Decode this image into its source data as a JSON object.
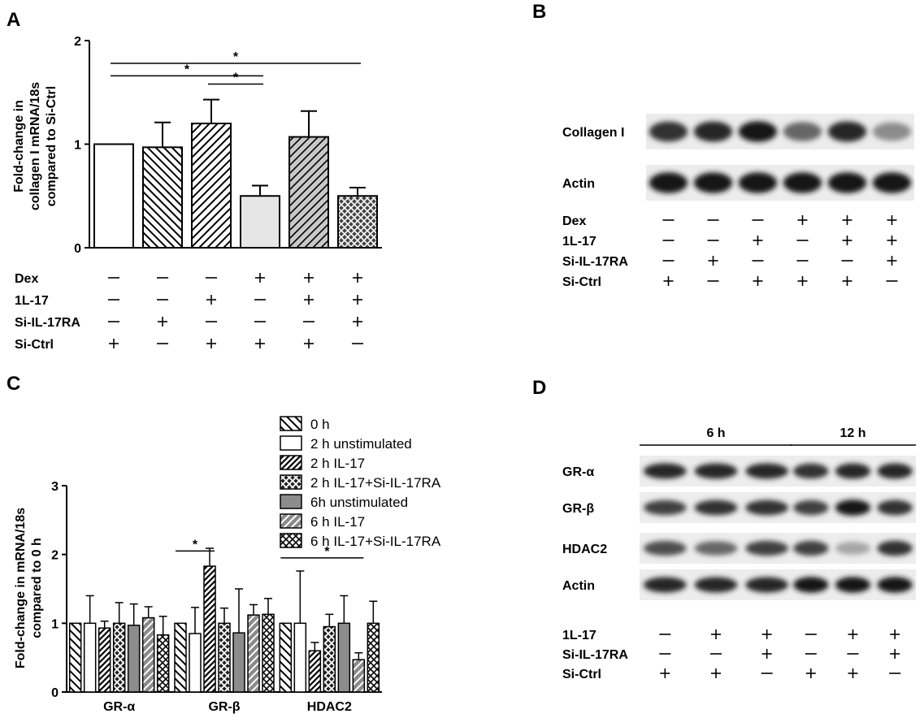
{
  "panels": {
    "A": {
      "letter": "A",
      "chart_data": {
        "type": "bar",
        "ylabel": "Fold-change in\ncollagen I mRNA/18s\ncompared to Si-Ctrl",
        "ylim": [
          0,
          2
        ],
        "yticks": [
          "0",
          "1",
          "2"
        ],
        "groups": 6,
        "values": [
          1.0,
          0.97,
          1.2,
          0.5,
          1.07,
          0.5
        ],
        "errors": [
          0,
          0.24,
          0.23,
          0.1,
          0.25,
          0.08
        ],
        "fills": [
          "white",
          "hatch-backslash",
          "hatch-slash",
          "light-gray",
          "gray-hatch-slash",
          "crosshatch-dark"
        ],
        "significance": [
          {
            "from": 0,
            "to": 5,
            "y": 1.78,
            "label": "*"
          },
          {
            "from": 0,
            "to": 3,
            "y": 1.66,
            "label": "*"
          },
          {
            "from": 2,
            "to": 3,
            "y": 1.58,
            "label": "*"
          }
        ],
        "conditions": [
          {
            "label": "Dex",
            "values": [
              "—",
              "—",
              "—",
              "+",
              "+",
              "+"
            ]
          },
          {
            "label": "1L-17",
            "values": [
              "—",
              "—",
              "+",
              "—",
              "+",
              "+"
            ]
          },
          {
            "label": "Si-IL-17RA",
            "values": [
              "—",
              "+",
              "—",
              "—",
              "—",
              "+"
            ]
          },
          {
            "label": "Si-Ctrl",
            "values": [
              "+",
              "—",
              "+",
              "+",
              "+",
              "—"
            ]
          }
        ]
      }
    },
    "B": {
      "letter": "B",
      "blot_rows": [
        {
          "label": "Collagen I",
          "intensity": [
            0.8,
            0.85,
            0.9,
            0.6,
            0.85,
            0.45
          ]
        },
        {
          "label": "Actin",
          "intensity": [
            0.9,
            0.9,
            0.9,
            0.9,
            0.9,
            0.9
          ]
        }
      ],
      "conditions": [
        {
          "label": "Dex",
          "values": [
            "—",
            "—",
            "—",
            "+",
            "+",
            "+"
          ]
        },
        {
          "label": "1L-17",
          "values": [
            "—",
            "—",
            "+",
            "—",
            "+",
            "+"
          ]
        },
        {
          "label": "Si-IL-17RA",
          "values": [
            "—",
            "+",
            "—",
            "—",
            "—",
            "+"
          ]
        },
        {
          "label": "Si-Ctrl",
          "values": [
            "+",
            "—",
            "+",
            "+",
            "+",
            "—"
          ]
        }
      ]
    },
    "C": {
      "letter": "C",
      "chart_data": {
        "type": "bar",
        "ylabel": "Fold-change in mRNA/18s\ncompared to 0 h",
        "ylim": [
          0,
          3
        ],
        "yticks": [
          "0",
          "1",
          "2",
          "3"
        ],
        "categories": [
          "GR-α",
          "GR-β",
          "HDAC2"
        ],
        "legend_position": "top-right",
        "series": [
          {
            "name": "0 h",
            "fill": "hatch-backslash",
            "values": [
              1.0,
              1.0,
              1.0
            ],
            "errors": [
              0,
              0,
              0
            ]
          },
          {
            "name": "2 h unstimulated",
            "fill": "white",
            "values": [
              1.0,
              0.85,
              1.0
            ],
            "errors": [
              0.4,
              0.38,
              0.76
            ]
          },
          {
            "name": "2 h IL-17",
            "fill": "hatch-slash-dense",
            "values": [
              0.93,
              1.83,
              0.6
            ],
            "errors": [
              0.1,
              0.26,
              0.12
            ]
          },
          {
            "name": "2 h IL-17+Si-IL-17RA",
            "fill": "crosshatch",
            "values": [
              1.0,
              1.0,
              0.95
            ],
            "errors": [
              0.3,
              0.22,
              0.18
            ]
          },
          {
            "name": "6h unstimulated",
            "fill": "gray",
            "values": [
              0.97,
              0.86,
              1.0
            ],
            "errors": [
              0.31,
              0.64,
              0.4
            ]
          },
          {
            "name": "6 h IL-17",
            "fill": "gray-hatch",
            "values": [
              1.08,
              1.12,
              0.47
            ],
            "errors": [
              0.16,
              0.15,
              0.1
            ]
          },
          {
            "name": "6 h IL-17+Si-IL-17RA",
            "fill": "crosshatch-light",
            "values": [
              0.83,
              1.13,
              1.0
            ],
            "errors": [
              0.27,
              0.23,
              0.32
            ]
          }
        ],
        "significance": [
          {
            "category": 1,
            "from_series": 0,
            "to_series": 2,
            "y": 2.05,
            "label": "*"
          },
          {
            "category": 2,
            "from_series": 0,
            "to_series": 5,
            "y": 1.95,
            "label": "*"
          }
        ]
      }
    },
    "D": {
      "letter": "D",
      "time_groups": [
        {
          "label": "6 h"
        },
        {
          "label": "12 h"
        }
      ],
      "blot_rows": [
        {
          "label": "GR-α",
          "intensity": [
            0.85,
            0.85,
            0.85,
            0.8,
            0.85,
            0.85
          ]
        },
        {
          "label": "GR-β",
          "intensity": [
            0.75,
            0.8,
            0.8,
            0.75,
            0.9,
            0.8
          ]
        },
        {
          "label": "HDAC2",
          "intensity": [
            0.7,
            0.6,
            0.75,
            0.75,
            0.35,
            0.8
          ]
        },
        {
          "label": "Actin",
          "intensity": [
            0.85,
            0.85,
            0.85,
            0.9,
            0.9,
            0.9
          ]
        }
      ],
      "conditions": [
        {
          "label": "1L-17",
          "values": [
            "—",
            "+",
            "+",
            "—",
            "+",
            "+"
          ]
        },
        {
          "label": "Si-IL-17RA",
          "values": [
            "—",
            "—",
            "+",
            "—",
            "—",
            "+"
          ]
        },
        {
          "label": "Si-Ctrl",
          "values": [
            "+",
            "+",
            "—",
            "+",
            "+",
            "—"
          ]
        }
      ]
    }
  }
}
